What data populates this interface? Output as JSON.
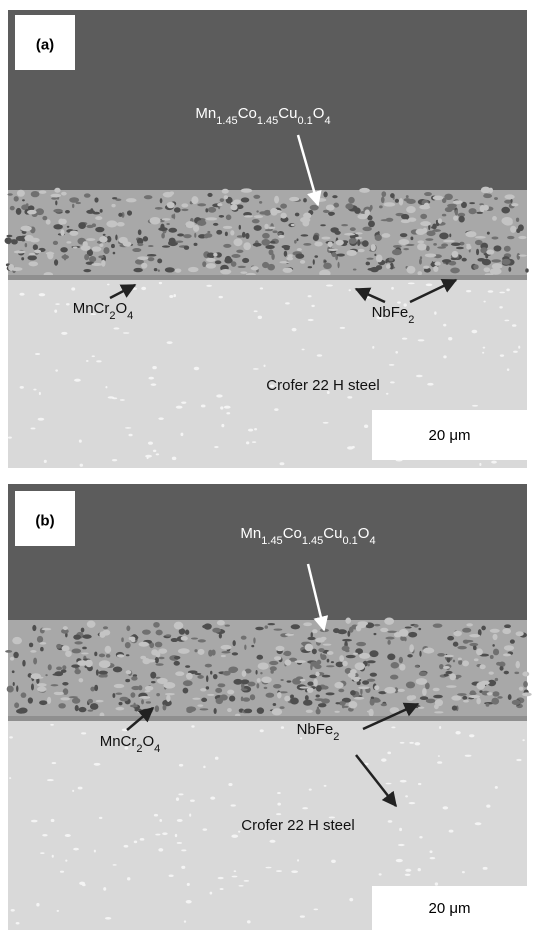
{
  "panels": [
    {
      "label": "(a)",
      "coating": {
        "parts": [
          "Mn",
          "1.45",
          "Co",
          "1.45",
          "Cu",
          "0.1",
          "O",
          "4"
        ]
      },
      "interlayer": {
        "parts": [
          "MnCr",
          "2",
          "O",
          "4"
        ]
      },
      "precipitate": {
        "parts": [
          "NbFe",
          "2"
        ]
      },
      "substrate": "Crofer 22 H steel",
      "scale_bar": "20 μm"
    },
    {
      "label": "(b)",
      "coating": {
        "parts": [
          "Mn",
          "1.45",
          "Co",
          "1.45",
          "Cu",
          "0.1",
          "O",
          "4"
        ]
      },
      "interlayer": {
        "parts": [
          "MnCr",
          "2",
          "O",
          "4"
        ]
      },
      "precipitate": {
        "parts": [
          "NbFe",
          "2"
        ]
      },
      "substrate": "Crofer 22 H steel",
      "scale_bar": "20 μm"
    }
  ]
}
